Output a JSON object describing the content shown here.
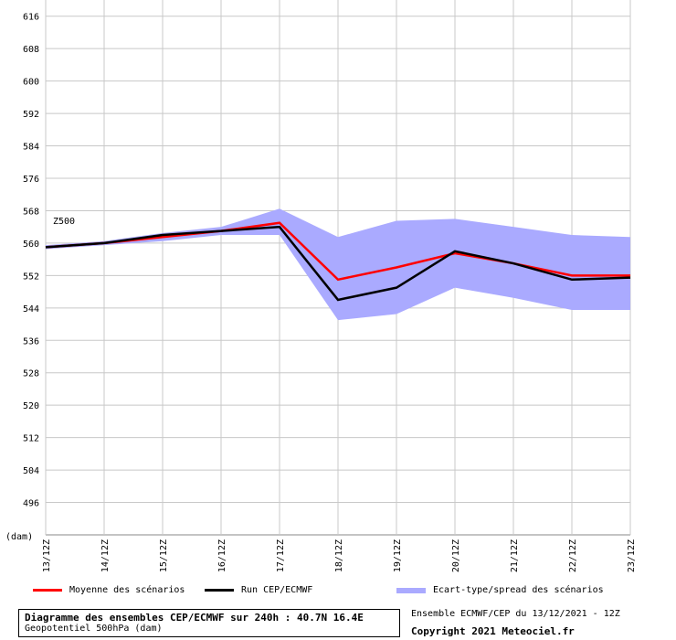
{
  "chart_data": {
    "type": "line",
    "title": "Diagramme des ensembles CEP/ECMWF sur 240h : 40.7N 16.4E",
    "subtitle": "Geopotentiel 500hPa (dam)",
    "variable_label": "Z500",
    "ylabel": "(dam)",
    "ylim": [
      488,
      620
    ],
    "yticks": [
      496,
      504,
      512,
      520,
      528,
      536,
      544,
      552,
      560,
      568,
      576,
      584,
      592,
      600,
      608,
      616
    ],
    "x": [
      "13/12Z",
      "14/12Z",
      "15/12Z",
      "16/12Z",
      "17/12Z",
      "18/12Z",
      "19/12Z",
      "20/12Z",
      "21/12Z",
      "22/12Z",
      "23/12Z"
    ],
    "series": [
      {
        "name": "Moyenne des scénarios",
        "color": "#ff0000",
        "values": [
          559,
          560,
          561.5,
          563,
          565,
          551,
          554,
          557.5,
          555,
          552,
          552
        ]
      },
      {
        "name": "Run CEP/ECMWF",
        "color": "#000000",
        "values": [
          559,
          560,
          562,
          563,
          564,
          546,
          549,
          558,
          555,
          551,
          551.5
        ]
      }
    ],
    "spread": {
      "name": "Ecart-type/spread des scénarios",
      "color": "#aaaaff",
      "upper": [
        559.5,
        560.5,
        562.5,
        564,
        568.5,
        561.5,
        565.5,
        566,
        564,
        562,
        561.5
      ],
      "lower": [
        558.5,
        559.5,
        560.5,
        562,
        562,
        541,
        542.5,
        549,
        546.5,
        543.5,
        543.5
      ]
    },
    "grid": true
  },
  "footer": {
    "run_info": "Ensemble ECMWF/CEP du 13/12/2021 - 12Z",
    "copyright": "Copyright 2021 Meteociel.fr"
  }
}
